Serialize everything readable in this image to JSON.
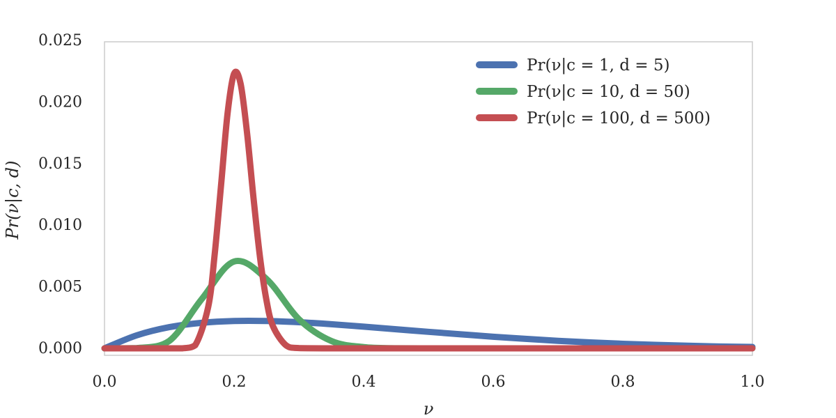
{
  "chart_data": {
    "type": "line",
    "title": "",
    "xlabel": "ν",
    "ylabel": "Pr(ν|c, d)",
    "xlim": [
      0.0,
      1.0
    ],
    "ylim": [
      -0.0006,
      0.025
    ],
    "xticks": [
      0.0,
      0.2,
      0.4,
      0.6,
      0.8,
      1.0
    ],
    "xtick_labels": [
      "0.0",
      "0.2",
      "0.4",
      "0.6",
      "0.8",
      "1.0"
    ],
    "yticks": [
      0.0,
      0.005,
      0.01,
      0.015,
      0.02,
      0.025
    ],
    "ytick_labels": [
      "0.000",
      "0.005",
      "0.010",
      "0.015",
      "0.020",
      "0.025"
    ],
    "grid": false,
    "legend_position": "top-right",
    "x_step": 0.05,
    "series": [
      {
        "name": "Pr(ν|c = 1, d = 5)",
        "color": "#4c72b0",
        "x": [
          0.0,
          0.05,
          0.1,
          0.15,
          0.2,
          0.25,
          0.3,
          0.35,
          0.4,
          0.45,
          0.5,
          0.55,
          0.6,
          0.65,
          0.7,
          0.75,
          0.8,
          0.85,
          0.9,
          0.95,
          1.0
        ],
        "values": [
          0.0,
          0.00106,
          0.00172,
          0.00207,
          0.00222,
          0.00222,
          0.00212,
          0.00196,
          0.00176,
          0.00155,
          0.00134,
          0.00114,
          0.00094,
          0.00077,
          0.00061,
          0.00048,
          0.00037,
          0.00028,
          0.00021,
          0.00015,
          0.00011
        ]
      },
      {
        "name": "Pr(ν|c = 10, d = 50)",
        "color": "#55a868",
        "x": [
          0.0,
          0.05,
          0.1,
          0.15,
          0.2,
          0.25,
          0.3,
          0.35,
          0.4,
          0.45,
          0.5,
          0.55,
          0.6,
          0.65,
          0.7,
          0.75,
          0.8,
          0.85,
          0.9,
          0.95,
          1.0
        ],
        "values": [
          0.0,
          2e-05,
          0.0006,
          0.00399,
          0.00705,
          0.00563,
          0.00237,
          0.0006,
          0.0001,
          1e-05,
          0.0,
          0.0,
          0.0,
          0.0,
          0.0,
          0.0,
          0.0,
          0.0,
          0.0,
          0.0,
          0.0
        ]
      },
      {
        "name": "Pr(ν|c = 100, d = 500)",
        "color": "#c44e52",
        "x": [
          0.0,
          0.05,
          0.1,
          0.12,
          0.14,
          0.16,
          0.17,
          0.18,
          0.19,
          0.2,
          0.21,
          0.22,
          0.23,
          0.24,
          0.25,
          0.26,
          0.28,
          0.3,
          0.35,
          0.4,
          0.5,
          0.6,
          0.7,
          0.8,
          0.9,
          1.0
        ],
        "values": [
          0.0,
          0.0,
          0.0,
          0.0,
          0.00025,
          0.00335,
          0.0076,
          0.0133,
          0.0191,
          0.0223,
          0.0215,
          0.0175,
          0.0122,
          0.0074,
          0.0039,
          0.0018,
          0.00025,
          2e-05,
          0.0,
          0.0,
          0.0,
          0.0,
          0.0,
          0.0,
          0.0,
          0.0
        ]
      }
    ]
  }
}
